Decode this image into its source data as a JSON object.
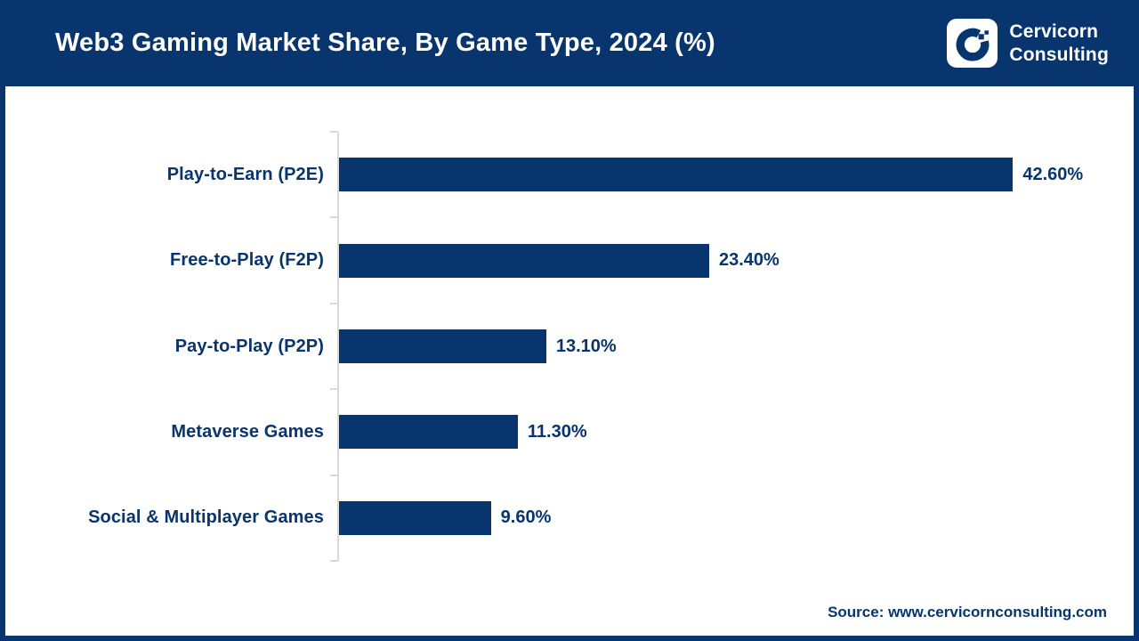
{
  "header": {
    "title": "Web3 Gaming Market Share, By Game Type, 2024 (%)",
    "brand": {
      "name_line1": "Cervicorn",
      "name_line2": "Consulting"
    }
  },
  "colors": {
    "navy": "#08356D",
    "header_bg": "#08356D",
    "bar_color": "#08356D",
    "axis_line": "#D9D9D9",
    "text_on_header": "#FFFFFF"
  },
  "chart_data": {
    "type": "bar",
    "orientation": "horizontal",
    "title": "Web3 Gaming Market Share, By Game Type, 2024 (%)",
    "categories": [
      "Play-to-Earn (P2E)",
      "Free-to-Play (F2P)",
      "Pay-to-Play (P2P)",
      "Metaverse Games",
      "Social & Multiplayer Games"
    ],
    "values": [
      42.6,
      23.4,
      13.1,
      11.3,
      9.6
    ],
    "value_labels": [
      "42.60%",
      "23.40%",
      "13.10%",
      "11.30%",
      "9.60%"
    ],
    "unit": "%",
    "xlim": [
      0,
      45
    ],
    "grid": false,
    "legend": false,
    "value_label_position": "end-of-bar"
  },
  "footer": {
    "source": "Source: www.cervicornconsulting.com"
  }
}
